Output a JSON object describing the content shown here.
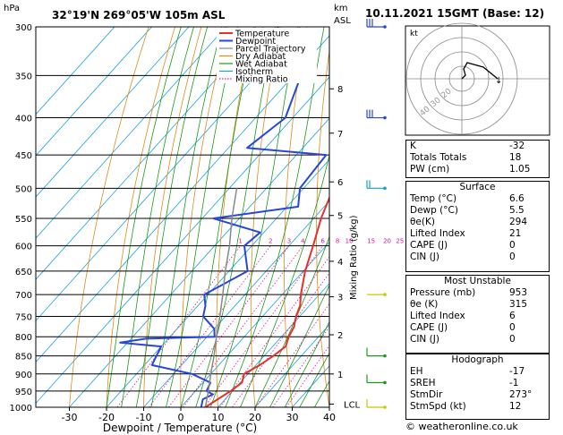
{
  "header": {
    "hpa_label": "hPa",
    "location": "32°19'N  269°05'W  105m ASL",
    "km_label": "km",
    "asl_label": "ASL",
    "datetime": "10.11.2021  15GMT  (Base: 12)"
  },
  "chart_data": {
    "type": "line",
    "title": "32°19'N  269°05'W  105m ASL",
    "xlabel": "Dewpoint / Temperature (°C)",
    "ylabel": "hPa",
    "right_axis_label": "Mixing Ratio (g/kg)",
    "xlim": [
      -35,
      40
    ],
    "ylim": [
      1000,
      300
    ],
    "pressure_ticks": [
      300,
      350,
      400,
      450,
      500,
      550,
      600,
      650,
      700,
      750,
      800,
      850,
      900,
      950,
      1000
    ],
    "temperature_ticks": [
      -30,
      -20,
      -10,
      0,
      10,
      20,
      30,
      40
    ],
    "km_ticks": [
      {
        "label": "1",
        "p": 900
      },
      {
        "label": "2",
        "p": 795
      },
      {
        "label": "3",
        "p": 705
      },
      {
        "label": "4",
        "p": 630
      },
      {
        "label": "5",
        "p": 545
      },
      {
        "label": "6",
        "p": 490
      },
      {
        "label": "7",
        "p": 420
      },
      {
        "label": "8",
        "p": 365
      },
      {
        "label": "LCL",
        "p": 990
      }
    ],
    "mixing_ratio_labels": [
      "1",
      "2",
      "3",
      "4",
      "6",
      "8",
      "10",
      "15",
      "20",
      "25"
    ],
    "legend": [
      "Temperature",
      "Dewpoint",
      "Parcel Trajectory",
      "Dry Adiabat",
      "Wet Adiabat",
      "Isotherm",
      "Mixing Ratio"
    ],
    "legend_position": "top-right",
    "series": [
      {
        "name": "Temperature",
        "color": "#e8302a",
        "points": [
          [
            1000,
            6.6
          ],
          [
            975,
            8
          ],
          [
            950,
            9.5
          ],
          [
            925,
            10.5
          ],
          [
            900,
            9
          ],
          [
            875,
            11
          ],
          [
            850,
            12.5
          ],
          [
            825,
            13.5
          ],
          [
            800,
            12
          ],
          [
            775,
            11
          ],
          [
            750,
            9
          ],
          [
            725,
            7.5
          ],
          [
            700,
            5
          ],
          [
            650,
            0.5
          ],
          [
            600,
            -3.5
          ],
          [
            550,
            -8
          ],
          [
            500,
            -12
          ],
          [
            450,
            -17.5
          ],
          [
            400,
            -24
          ],
          [
            350,
            -31
          ],
          [
            300,
            -38
          ]
        ]
      },
      {
        "name": "Dewpoint",
        "color": "#2846d8",
        "points": [
          [
            1000,
            5.5
          ],
          [
            975,
            4
          ],
          [
            960,
            5.5
          ],
          [
            950,
            3
          ],
          [
            925,
            2
          ],
          [
            900,
            -5
          ],
          [
            875,
            -18
          ],
          [
            850,
            -19
          ],
          [
            825,
            -20
          ],
          [
            815,
            -32
          ],
          [
            805,
            -26
          ],
          [
            800,
            -8
          ],
          [
            780,
            -10
          ],
          [
            750,
            -16
          ],
          [
            725,
            -18
          ],
          [
            700,
            -21
          ],
          [
            650,
            -15
          ],
          [
            600,
            -22
          ],
          [
            575,
            -21
          ],
          [
            550,
            -37
          ],
          [
            530,
            -17
          ],
          [
            500,
            -21
          ],
          [
            450,
            -22
          ],
          [
            440,
            -45
          ],
          [
            400,
            -42
          ],
          [
            350,
            -48
          ],
          [
            325,
            -62
          ],
          [
            300,
            -66
          ]
        ]
      },
      {
        "name": "Parcel Trajectory",
        "color": "#888888",
        "points": [
          [
            1000,
            6.6
          ],
          [
            990,
            6.0
          ],
          [
            950,
            3.5
          ],
          [
            900,
            0
          ],
          [
            850,
            -3.5
          ],
          [
            800,
            -7.5
          ],
          [
            750,
            -11.5
          ],
          [
            700,
            -16
          ],
          [
            650,
            -21
          ],
          [
            600,
            -26
          ],
          [
            550,
            -32
          ],
          [
            500,
            -38
          ]
        ]
      }
    ]
  },
  "hodograph": {
    "unit_label": "kt",
    "ring_labels": [
      "40",
      "30",
      "20"
    ]
  },
  "indices": {
    "rows": [
      {
        "label": "K",
        "value": "-32"
      },
      {
        "label": "Totals Totals",
        "value": "18"
      },
      {
        "label": "PW (cm)",
        "value": "1.05"
      }
    ]
  },
  "surface": {
    "title": "Surface",
    "rows": [
      {
        "label": "Temp (°C)",
        "value": "6.6"
      },
      {
        "label": "Dewp (°C)",
        "value": "5.5"
      },
      {
        "label": "θe(K)",
        "value": "294"
      },
      {
        "label": "Lifted Index",
        "value": "21"
      },
      {
        "label": "CAPE (J)",
        "value": "0"
      },
      {
        "label": "CIN (J)",
        "value": "0"
      }
    ]
  },
  "most_unstable": {
    "title": "Most Unstable",
    "rows": [
      {
        "label": "Pressure (mb)",
        "value": "953"
      },
      {
        "label": "θe (K)",
        "value": "315"
      },
      {
        "label": "Lifted Index",
        "value": "6"
      },
      {
        "label": "CAPE (J)",
        "value": "0"
      },
      {
        "label": "CIN (J)",
        "value": "0"
      }
    ]
  },
  "hodograph_table": {
    "title": "Hodograph",
    "rows": [
      {
        "label": "EH",
        "value": "-17"
      },
      {
        "label": "SREH",
        "value": "-1"
      },
      {
        "label": "StmDir",
        "value": "273°"
      },
      {
        "label": "StmSpd (kt)",
        "value": "12"
      }
    ]
  },
  "footer": {
    "copyright": "© weatheronline.co.uk"
  },
  "colors": {
    "temperature": "#e8302a",
    "dewpoint": "#2846d8",
    "parcel": "#888888",
    "dry_adiabat": "#e08a1c",
    "wet_adiabat": "#1a9a1a",
    "isotherm": "#1aa0e0",
    "mixing_ratio": "#e0139a"
  }
}
